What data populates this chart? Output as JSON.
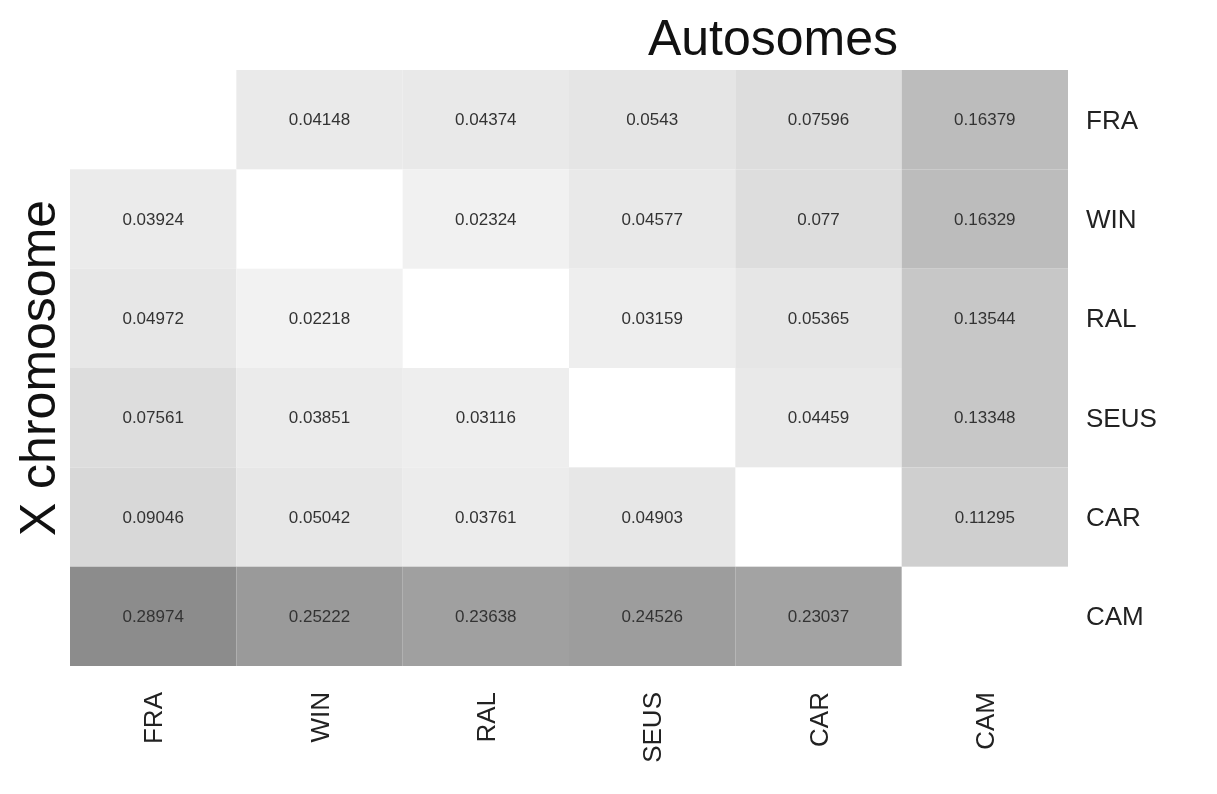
{
  "chart_data": {
    "type": "heatmap",
    "title": "Autosomes",
    "ylabel": "X chromosome",
    "categories": [
      "FRA",
      "WIN",
      "RAL",
      "SEUS",
      "CAR",
      "CAM"
    ],
    "y_categories": [
      "FRA",
      "WIN",
      "RAL",
      "SEUS",
      "CAR",
      "CAM"
    ],
    "cells": [
      [
        null,
        0.04148,
        0.04374,
        0.0543,
        0.07596,
        0.16379
      ],
      [
        0.03924,
        null,
        0.02324,
        0.04577,
        0.077,
        0.16329
      ],
      [
        0.04972,
        0.02218,
        null,
        0.03159,
        0.05365,
        0.13544
      ],
      [
        0.07561,
        0.03851,
        0.03116,
        null,
        0.04459,
        0.13348
      ],
      [
        0.09046,
        0.05042,
        0.03761,
        0.04903,
        null,
        0.11295
      ],
      [
        0.28974,
        0.25222,
        0.23638,
        0.24526,
        0.23037,
        null
      ]
    ],
    "data_labels": true
  }
}
